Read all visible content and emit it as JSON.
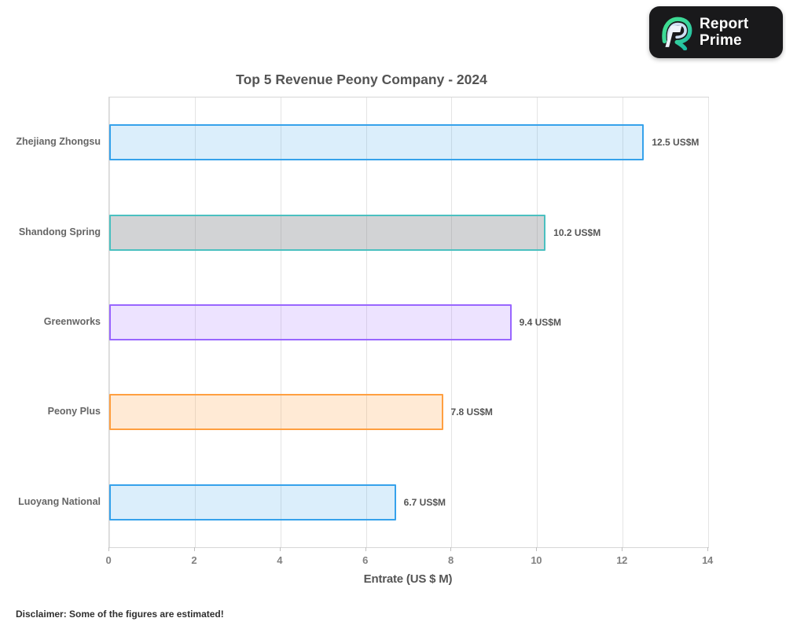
{
  "logo": {
    "line1": "Report",
    "line2": "Prime"
  },
  "chart_data": {
    "type": "bar",
    "orientation": "horizontal",
    "title": "Top 5 Revenue Peony Company - 2024",
    "categories": [
      "Zhejiang Zhongsu",
      "Shandong Spring",
      "Greenworks",
      "Peony Plus",
      "Luoyang National"
    ],
    "values": [
      12.5,
      10.2,
      9.4,
      7.8,
      6.7
    ],
    "value_labels": [
      "12.5 US$M",
      "10.2 US$M",
      "9.4 US$M",
      "7.8 US$M",
      "6.7 US$M"
    ],
    "bar_border_colors": [
      "#36a2eb",
      "#4bc0c0",
      "#9966ff",
      "#ff9f40",
      "#36a2eb"
    ],
    "bar_fill_colors": [
      "rgba(54,162,235,0.18)",
      "rgba(125,130,135,0.35)",
      "rgba(153,102,255,0.18)",
      "rgba(255,159,64,0.22)",
      "rgba(54,162,235,0.18)"
    ],
    "xlabel": "Entrate (US $ M)",
    "xlim": [
      0,
      14
    ],
    "xticks": [
      "0",
      "2",
      "4",
      "6",
      "8",
      "10",
      "12",
      "14"
    ],
    "grid": "vertical",
    "legend": "none"
  },
  "disclaimer": "Disclaimer: Some of the figures are estimated!"
}
